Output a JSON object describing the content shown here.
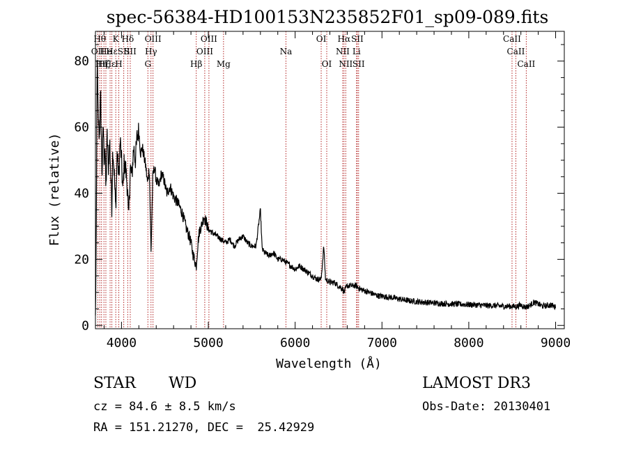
{
  "chart_data": {
    "type": "line",
    "title": "spec-56384-HD100153N235852F01_sp09-089.fits",
    "xlabel": "Wavelength (Å)",
    "ylabel": "Flux (relative)",
    "xlim": [
      3700,
      9100
    ],
    "ylim": [
      -1,
      89
    ],
    "x_ticks": [
      4000,
      5000,
      6000,
      7000,
      8000,
      9000
    ],
    "y_ticks": [
      0,
      20,
      40,
      60,
      80
    ],
    "x_tick_labels": [
      "4000",
      "5000",
      "6000",
      "7000",
      "8000",
      "9000"
    ],
    "y_tick_labels": [
      "0",
      "20",
      "40",
      "60",
      "80"
    ],
    "series": [
      {
        "name": "flux",
        "x": [
          3700,
          3710,
          3720,
          3730,
          3745,
          3760,
          3775,
          3790,
          3800,
          3810,
          3820,
          3835,
          3850,
          3865,
          3880,
          3889,
          3900,
          3915,
          3933,
          3950,
          3970,
          3985,
          4000,
          4015,
          4030,
          4050,
          4070,
          4080,
          4101,
          4120,
          4140,
          4160,
          4180,
          4200,
          4220,
          4240,
          4260,
          4280,
          4300,
          4320,
          4340,
          4360,
          4380,
          4400,
          4430,
          4460,
          4490,
          4520,
          4560,
          4600,
          4650,
          4700,
          4750,
          4780,
          4800,
          4820,
          4840,
          4861,
          4880,
          4900,
          4920,
          4950,
          4980,
          5000,
          5050,
          5100,
          5150,
          5200,
          5250,
          5300,
          5350,
          5400,
          5450,
          5500,
          5550,
          5600,
          5620,
          5650,
          5700,
          5750,
          5800,
          5850,
          5900,
          5950,
          6000,
          6050,
          6100,
          6150,
          6200,
          6250,
          6300,
          6330,
          6350,
          6400,
          6450,
          6500,
          6550,
          6563,
          6580,
          6600,
          6650,
          6700,
          6750,
          6800,
          6850,
          6900,
          6950,
          7000,
          7100,
          7200,
          7300,
          7400,
          7500,
          7600,
          7700,
          7800,
          7900,
          8000,
          8100,
          8200,
          8300,
          8400,
          8500,
          8550,
          8600,
          8650,
          8700,
          8750,
          8800,
          8850,
          8900,
          8950,
          9000
        ],
        "y": [
          2,
          28,
          82,
          64,
          57,
          70,
          45,
          61,
          50,
          55,
          40,
          58,
          48,
          56,
          43,
          36,
          54,
          47,
          35,
          52,
          45,
          56,
          50,
          40,
          49,
          47,
          41,
          31,
          48,
          45,
          54,
          50,
          57,
          59,
          52,
          54,
          51,
          48,
          43,
          48,
          22,
          45,
          48,
          44,
          42,
          46,
          44,
          40,
          42,
          39,
          37,
          34,
          29,
          27,
          25,
          22,
          20,
          18,
          25,
          29,
          30,
          33,
          31,
          29,
          28,
          27,
          26,
          25,
          26,
          24,
          26,
          27,
          25,
          24,
          24,
          35,
          23,
          22,
          21,
          22,
          20,
          20,
          19,
          18,
          17,
          18,
          17,
          16,
          15,
          14,
          14,
          24,
          14,
          13,
          13,
          12,
          11,
          10,
          11,
          12,
          12,
          12,
          11,
          10.5,
          10,
          9.5,
          9,
          8.8,
          8.5,
          8,
          7.5,
          7.2,
          7.0,
          6.8,
          6.6,
          6.5,
          6.4,
          6.3,
          6.2,
          6.0,
          6.0,
          5.8,
          5.8,
          5.7,
          6.2,
          5.5,
          6.0,
          7.0,
          6.5,
          5.8,
          6.0,
          6.2,
          5.5
        ]
      }
    ],
    "lines": [
      {
        "x": 3727,
        "label": "OII",
        "row": 1
      },
      {
        "x": 3750,
        "label": "Hθ",
        "row": 0
      },
      {
        "x": 3770,
        "label": "Hη",
        "row": 2
      },
      {
        "x": 3798,
        "label": "Hζ",
        "row": 2
      },
      {
        "x": 3820,
        "label": "He",
        "row": 1
      },
      {
        "x": 3869,
        "label": "Hε",
        "row": 2
      },
      {
        "x": 3889,
        "label": "Hε",
        "row": 1
      },
      {
        "x": 3934,
        "label": "K",
        "row": 0
      },
      {
        "x": 3969,
        "label": "H",
        "row": 2
      },
      {
        "x": 4026,
        "label": "SII",
        "row": 1
      },
      {
        "x": 4072,
        "label": "Hδ",
        "row": 0
      },
      {
        "x": 4101,
        "label": "SII",
        "row": 1
      },
      {
        "x": 4304,
        "label": "G",
        "row": 2
      },
      {
        "x": 4340,
        "label": "Hγ",
        "row": 1
      },
      {
        "x": 4363,
        "label": "OIII",
        "row": 0
      },
      {
        "x": 4861,
        "label": "Hβ",
        "row": 2
      },
      {
        "x": 4959,
        "label": "OIII",
        "row": 1
      },
      {
        "x": 5007,
        "label": "OIII",
        "row": 0
      },
      {
        "x": 5175,
        "label": "Mg",
        "row": 2
      },
      {
        "x": 5894,
        "label": "Na",
        "row": 1
      },
      {
        "x": 6300,
        "label": "OI",
        "row": 0
      },
      {
        "x": 6364,
        "label": "OI",
        "row": 2
      },
      {
        "x": 6548,
        "label": "NII",
        "row": 1
      },
      {
        "x": 6563,
        "label": "Hα",
        "row": 0
      },
      {
        "x": 6583,
        "label": "NII",
        "row": 2
      },
      {
        "x": 6707,
        "label": "Li",
        "row": 1
      },
      {
        "x": 6716,
        "label": "SII",
        "row": 0
      },
      {
        "x": 6731,
        "label": "SII",
        "row": 2
      },
      {
        "x": 8498,
        "label": "CaII",
        "row": 0
      },
      {
        "x": 8542,
        "label": "CaII",
        "row": 1
      },
      {
        "x": 8662,
        "label": "CaII",
        "row": 2
      }
    ]
  },
  "footer": {
    "class": "STAR",
    "subclass": "WD",
    "survey": "LAMOST DR3",
    "redshift": "cz = 84.6 ± 8.5 km/s",
    "obs_date": "Obs-Date: 20130401",
    "coords": "RA = 151.21270, DEC =  25.42929"
  }
}
